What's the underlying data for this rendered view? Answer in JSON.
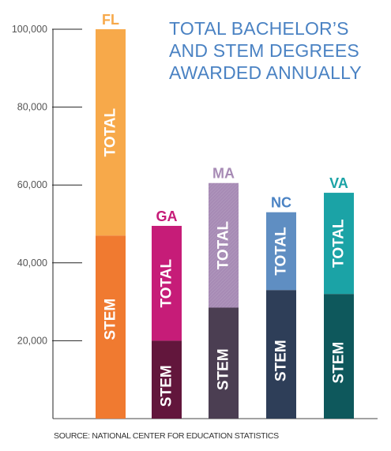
{
  "chart_data": {
    "type": "bar",
    "stacked": true,
    "title_lines": [
      "TOTAL BACHELOR’S",
      "AND STEM DEGREES",
      "AWARDED ANNUALLY"
    ],
    "source": "SOURCE: NATIONAL CENTER FOR EDUCATION STATISTICS",
    "categories": [
      "FL",
      "GA",
      "MA",
      "NC",
      "VA"
    ],
    "total_label": "TOTAL",
    "stem_label": "STEM",
    "total_values": [
      100000,
      49500,
      60500,
      53000,
      58000
    ],
    "stem_values": [
      47000,
      20000,
      28500,
      33000,
      32000
    ],
    "yticks": [
      20000,
      40000,
      60000,
      80000,
      100000
    ],
    "ytick_labels": [
      "20,000",
      "40,000",
      "60,000",
      "80,000",
      "100,000"
    ],
    "ylim": [
      0,
      100000
    ],
    "colors": {
      "total": [
        "#f7a94a",
        "#c61c78",
        "#a78bb5",
        "#5f8ec2",
        "#1ba3a6"
      ],
      "stem": [
        "#f07a30",
        "#62163c",
        "#4b3e52",
        "#2e3e58",
        "#0e585c"
      ],
      "labels": [
        "#f7a94a",
        "#c61c78",
        "#a78bb5",
        "#4a82c3",
        "#1ba3a6"
      ],
      "title": "#4a82c3"
    }
  }
}
